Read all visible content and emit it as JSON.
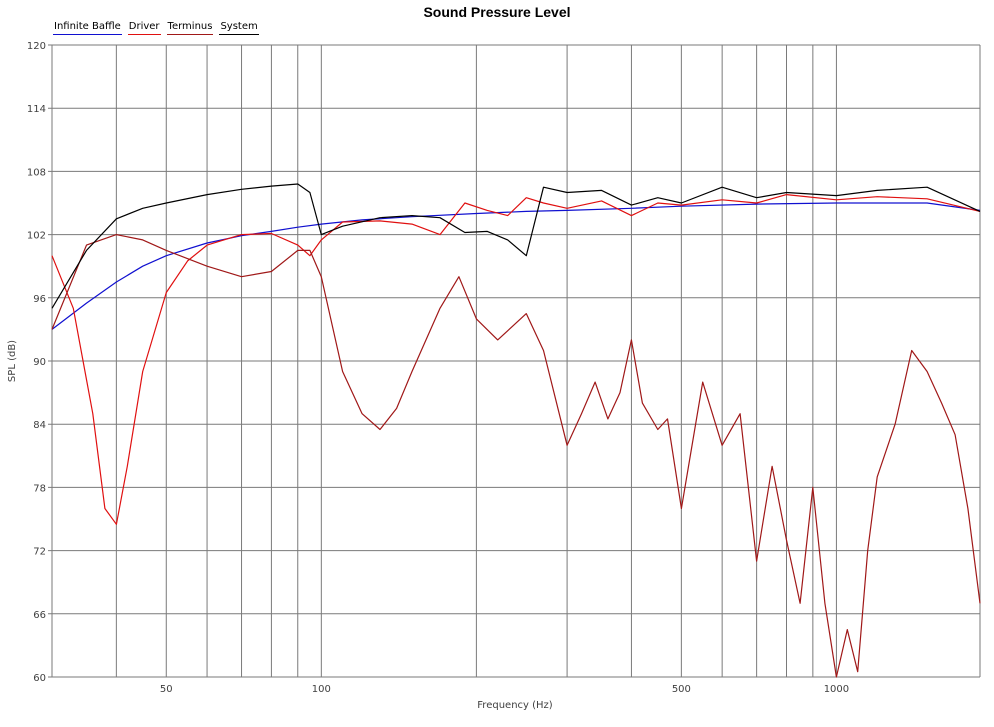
{
  "chart_data": {
    "type": "line",
    "title": "Sound Pressure Level",
    "xlabel": "Frequency (Hz)",
    "ylabel": "SPL (dB)",
    "x_scale": "log",
    "xlim": [
      30,
      1900
    ],
    "ylim": [
      60,
      120
    ],
    "x_ticklabels": [
      {
        "value": 50,
        "label": "50"
      },
      {
        "value": 100,
        "label": "100"
      },
      {
        "value": 500,
        "label": "500"
      },
      {
        "value": 1000,
        "label": "1000"
      }
    ],
    "y_ticks": [
      60,
      66,
      72,
      78,
      84,
      90,
      96,
      102,
      108,
      114,
      120
    ],
    "grid": true,
    "legend_position": "top-left",
    "series": [
      {
        "name": "Infinite Baffle",
        "color": "#1010d0",
        "x": [
          30,
          35,
          40,
          45,
          50,
          60,
          70,
          80,
          90,
          100,
          120,
          150,
          200,
          250,
          300,
          400,
          500,
          700,
          1000,
          1500,
          1900
        ],
        "y": [
          93.0,
          95.5,
          97.5,
          99.0,
          100.0,
          101.2,
          101.9,
          102.3,
          102.7,
          103.0,
          103.4,
          103.7,
          104.0,
          104.2,
          104.3,
          104.5,
          104.7,
          104.9,
          105.0,
          105.0,
          104.3
        ]
      },
      {
        "name": "Driver",
        "color": "#e01010",
        "x": [
          30,
          33,
          36,
          38,
          40,
          42,
          45,
          50,
          55,
          60,
          70,
          80,
          90,
          95,
          100,
          110,
          130,
          150,
          170,
          190,
          210,
          230,
          250,
          270,
          300,
          350,
          400,
          450,
          500,
          600,
          700,
          800,
          1000,
          1200,
          1500,
          1900
        ],
        "y": [
          100.0,
          95.0,
          85.0,
          76.0,
          74.5,
          80.0,
          89.0,
          96.5,
          99.5,
          101.0,
          102.0,
          102.1,
          101.0,
          100.0,
          101.5,
          103.2,
          103.3,
          103.0,
          102.0,
          105.0,
          104.3,
          103.8,
          105.5,
          105.0,
          104.5,
          105.2,
          103.8,
          105.0,
          104.8,
          105.3,
          105.0,
          105.8,
          105.3,
          105.6,
          105.4,
          104.2
        ]
      },
      {
        "name": "Terminus",
        "color": "#a01818",
        "x": [
          30,
          35,
          40,
          45,
          50,
          60,
          70,
          80,
          90,
          95,
          100,
          110,
          120,
          130,
          140,
          150,
          170,
          185,
          200,
          220,
          250,
          270,
          300,
          320,
          340,
          360,
          380,
          400,
          420,
          450,
          470,
          500,
          550,
          600,
          650,
          700,
          750,
          800,
          850,
          900,
          950,
          1000,
          1050,
          1100,
          1150,
          1200,
          1300,
          1400,
          1500,
          1600,
          1700,
          1800,
          1900
        ],
        "y": [
          93.0,
          101.0,
          102.0,
          101.5,
          100.5,
          99.0,
          98.0,
          98.5,
          100.5,
          100.5,
          98.0,
          89.0,
          85.0,
          83.5,
          85.5,
          89.0,
          95.0,
          98.0,
          94.0,
          92.0,
          94.5,
          91.0,
          82.0,
          85.0,
          88.0,
          84.5,
          87.0,
          92.0,
          86.0,
          83.5,
          84.5,
          76.0,
          88.0,
          82.0,
          85.0,
          71.0,
          80.0,
          73.0,
          67.0,
          78.0,
          67.0,
          60.0,
          64.5,
          60.5,
          72.0,
          79.0,
          84.0,
          91.0,
          89.0,
          86.0,
          83.0,
          76.0,
          67.0
        ]
      },
      {
        "name": "System",
        "color": "#000000",
        "x": [
          30,
          35,
          40,
          45,
          50,
          60,
          70,
          80,
          90,
          95,
          100,
          110,
          130,
          150,
          170,
          190,
          210,
          230,
          250,
          270,
          300,
          350,
          400,
          450,
          500,
          600,
          700,
          800,
          1000,
          1200,
          1500,
          1900
        ],
        "y": [
          95.0,
          100.5,
          103.5,
          104.5,
          105.0,
          105.8,
          106.3,
          106.6,
          106.8,
          106.0,
          102.0,
          102.8,
          103.6,
          103.8,
          103.6,
          102.2,
          102.3,
          101.5,
          100.0,
          106.5,
          106.0,
          106.2,
          104.8,
          105.5,
          105.0,
          106.5,
          105.5,
          106.0,
          105.7,
          106.2,
          106.5,
          104.2
        ]
      }
    ]
  }
}
